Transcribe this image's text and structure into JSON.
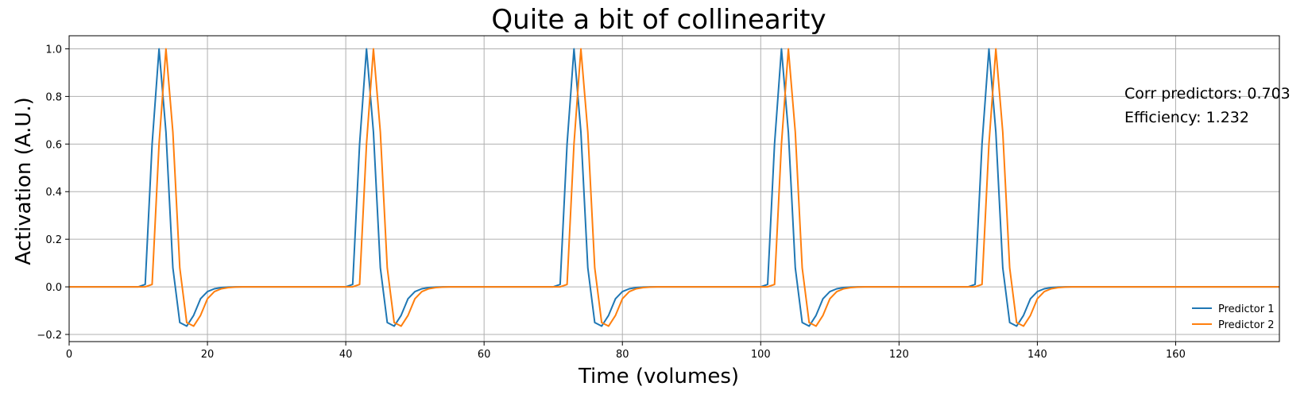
{
  "chart_data": {
    "type": "line",
    "title": "Quite a bit of collinearity",
    "xlabel": "Time (volumes)",
    "ylabel": "Activation (A.U.)",
    "xlim": [
      0,
      175
    ],
    "ylim": [
      -0.23,
      1.055
    ],
    "xticks": [
      0,
      20,
      40,
      60,
      80,
      100,
      120,
      140,
      160
    ],
    "xtick_labels": [
      "0",
      "20",
      "40",
      "60",
      "80",
      "100",
      "120",
      "140",
      "160"
    ],
    "yticks": [
      -0.2,
      0.0,
      0.2,
      0.4,
      0.6,
      0.8,
      1.0
    ],
    "ytick_labels": [
      "−0.2",
      "0.0",
      "0.2",
      "0.4",
      "0.6",
      "0.8",
      "1.0"
    ],
    "grid": true,
    "legend_position": "lower-right",
    "annotations": [
      "Corr predictors: 0.703",
      "Efficiency: 1.232"
    ],
    "series": [
      {
        "name": "Predictor 1",
        "color": "#1f77b4",
        "x": [
          0,
          10,
          11,
          12,
          13,
          14,
          15,
          16,
          17,
          18,
          19,
          20,
          21,
          22,
          23,
          24,
          25,
          40,
          41,
          42,
          43,
          44,
          45,
          46,
          47,
          48,
          49,
          50,
          51,
          52,
          53,
          54,
          55,
          70,
          71,
          72,
          73,
          74,
          75,
          76,
          77,
          78,
          79,
          80,
          81,
          82,
          83,
          84,
          85,
          100,
          101,
          102,
          103,
          104,
          105,
          106,
          107,
          108,
          109,
          110,
          111,
          112,
          113,
          114,
          115,
          130,
          131,
          132,
          133,
          134,
          135,
          136,
          137,
          138,
          139,
          140,
          141,
          142,
          143,
          144,
          145,
          175
        ],
        "y": [
          0,
          0,
          0.01,
          0.6,
          1.0,
          0.65,
          0.08,
          -0.15,
          -0.165,
          -0.12,
          -0.05,
          -0.02,
          -0.008,
          -0.003,
          -0.001,
          0,
          0,
          0,
          0.01,
          0.6,
          1.0,
          0.65,
          0.08,
          -0.15,
          -0.165,
          -0.12,
          -0.05,
          -0.02,
          -0.008,
          -0.003,
          -0.001,
          0,
          0,
          0,
          0.01,
          0.6,
          1.0,
          0.65,
          0.08,
          -0.15,
          -0.165,
          -0.12,
          -0.05,
          -0.02,
          -0.008,
          -0.003,
          -0.001,
          0,
          0,
          0,
          0.01,
          0.6,
          1.0,
          0.65,
          0.08,
          -0.15,
          -0.165,
          -0.12,
          -0.05,
          -0.02,
          -0.008,
          -0.003,
          -0.001,
          0,
          0,
          0,
          0.01,
          0.6,
          1.0,
          0.65,
          0.08,
          -0.15,
          -0.165,
          -0.12,
          -0.05,
          -0.02,
          -0.008,
          -0.003,
          -0.001,
          0,
          0,
          0
        ]
      },
      {
        "name": "Predictor 2",
        "color": "#ff7f0e",
        "x": [
          0,
          11,
          12,
          13,
          14,
          15,
          16,
          17,
          18,
          19,
          20,
          21,
          22,
          23,
          24,
          25,
          26,
          41,
          42,
          43,
          44,
          45,
          46,
          47,
          48,
          49,
          50,
          51,
          52,
          53,
          54,
          55,
          56,
          71,
          72,
          73,
          74,
          75,
          76,
          77,
          78,
          79,
          80,
          81,
          82,
          83,
          84,
          85,
          86,
          101,
          102,
          103,
          104,
          105,
          106,
          107,
          108,
          109,
          110,
          111,
          112,
          113,
          114,
          115,
          116,
          131,
          132,
          133,
          134,
          135,
          136,
          137,
          138,
          139,
          140,
          141,
          142,
          143,
          144,
          145,
          146,
          175
        ],
        "y": [
          0,
          0,
          0.01,
          0.6,
          1.0,
          0.65,
          0.08,
          -0.15,
          -0.165,
          -0.12,
          -0.05,
          -0.02,
          -0.008,
          -0.003,
          -0.001,
          0,
          0,
          0,
          0.01,
          0.6,
          1.0,
          0.65,
          0.08,
          -0.15,
          -0.165,
          -0.12,
          -0.05,
          -0.02,
          -0.008,
          -0.003,
          -0.001,
          0,
          0,
          0,
          0.01,
          0.6,
          1.0,
          0.65,
          0.08,
          -0.15,
          -0.165,
          -0.12,
          -0.05,
          -0.02,
          -0.008,
          -0.003,
          -0.001,
          0,
          0,
          0,
          0.01,
          0.6,
          1.0,
          0.65,
          0.08,
          -0.15,
          -0.165,
          -0.12,
          -0.05,
          -0.02,
          -0.008,
          -0.003,
          -0.001,
          0,
          0,
          0,
          0.01,
          0.6,
          1.0,
          0.65,
          0.08,
          -0.15,
          -0.165,
          -0.12,
          -0.05,
          -0.02,
          -0.008,
          -0.003,
          -0.001,
          0,
          0,
          0
        ]
      }
    ]
  }
}
